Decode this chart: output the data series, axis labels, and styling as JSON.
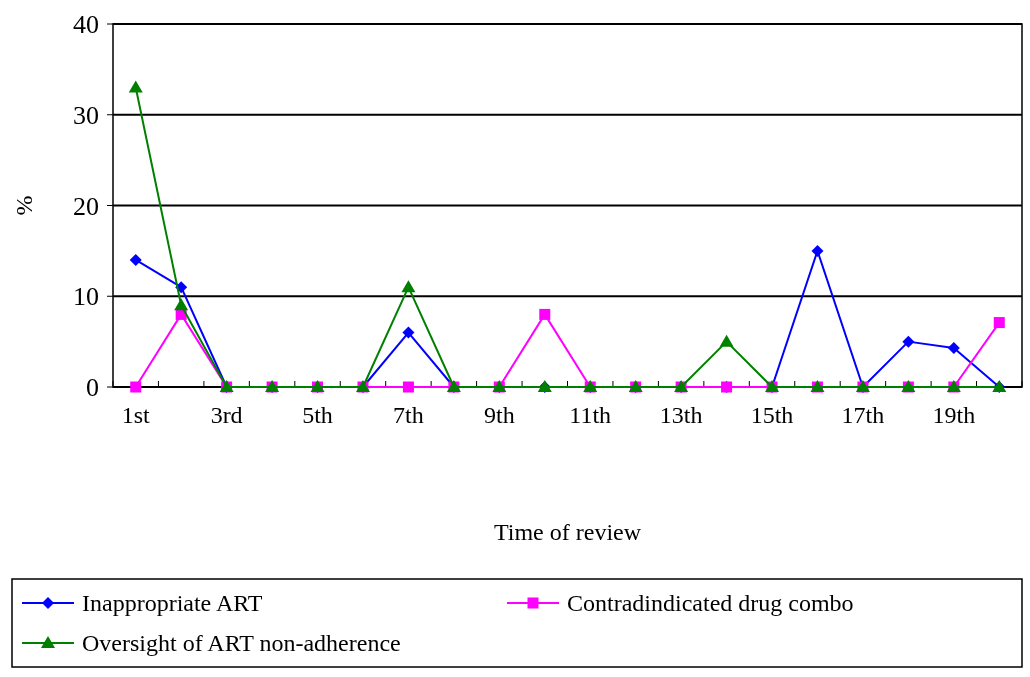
{
  "chart_data": {
    "type": "line",
    "xlabel": "Time of review",
    "ylabel": "%",
    "categories": [
      "1st",
      null,
      "3rd",
      null,
      "5th",
      null,
      "7th",
      null,
      "9th",
      null,
      "11th",
      null,
      "13th",
      null,
      "15th",
      null,
      "17th",
      null,
      "19th",
      null
    ],
    "series": [
      {
        "name": "Inappropriate ART",
        "color": "#0000ff",
        "marker": "diamond",
        "values": [
          14,
          11,
          0,
          0,
          0,
          0,
          6,
          0,
          0,
          0,
          0,
          0,
          0,
          0,
          0,
          15,
          0,
          5,
          4.3,
          0
        ]
      },
      {
        "name": "Contradindicated drug combo",
        "color": "#ff00ff",
        "marker": "square",
        "values": [
          0,
          8,
          0,
          0,
          0,
          0,
          0,
          0,
          0,
          8,
          0,
          0,
          0,
          0,
          0,
          0,
          0,
          0,
          0,
          7.1
        ]
      },
      {
        "name": "Oversight of ART non-adherence",
        "color": "#008000",
        "marker": "triangle",
        "values": [
          33,
          9,
          0,
          0,
          0,
          0,
          11,
          0,
          0,
          0,
          0,
          0,
          0,
          5,
          0,
          0,
          0,
          0,
          0,
          0
        ]
      }
    ],
    "ylim": [
      0,
      40
    ],
    "yticks": [
      0,
      10,
      20,
      30,
      40
    ],
    "grid": "y",
    "legend": "bottom",
    "line_style": "solid"
  }
}
